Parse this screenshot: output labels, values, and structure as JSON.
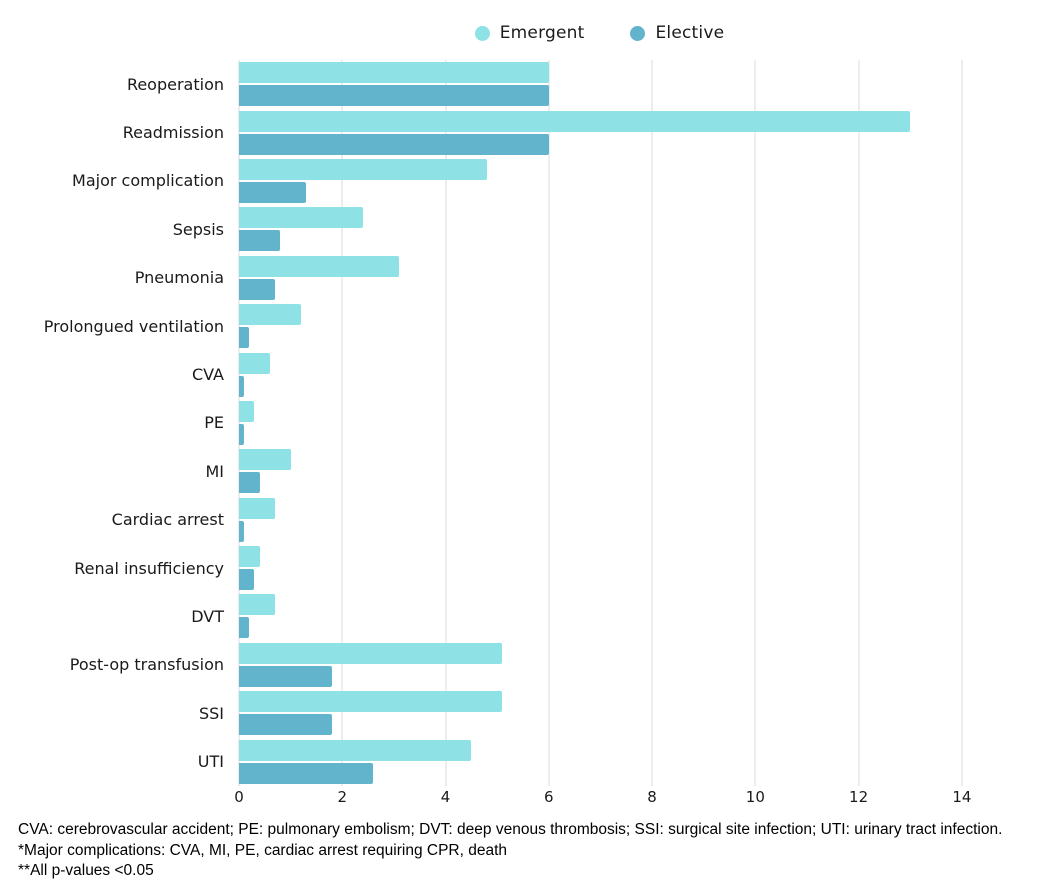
{
  "legend": [
    {
      "label": "Emergent",
      "color": "#8EE2E6"
    },
    {
      "label": "Elective",
      "color": "#62B4CC"
    }
  ],
  "chart_data": {
    "type": "bar",
    "orientation": "horizontal",
    "title": "",
    "xlabel": "",
    "ylabel": "",
    "categories": [
      "Reoperation",
      "Readmission",
      "Major complication",
      "Sepsis",
      "Pneumonia",
      "Prolongued ventilation",
      "CVA",
      "PE",
      "MI",
      "Cardiac arrest",
      "Renal insufficiency",
      "DVT",
      "Post-op transfusion",
      "SSI",
      "UTI"
    ],
    "series": [
      {
        "name": "Emergent",
        "color": "#8EE2E6",
        "values": [
          6.0,
          13.0,
          4.8,
          2.4,
          3.1,
          1.2,
          0.6,
          0.3,
          1.0,
          0.7,
          0.4,
          0.7,
          5.1,
          5.1,
          4.5
        ]
      },
      {
        "name": "Elective",
        "color": "#62B4CC",
        "values": [
          6.0,
          6.0,
          1.3,
          0.8,
          0.7,
          0.2,
          0.1,
          0.1,
          0.4,
          0.1,
          0.3,
          0.2,
          1.8,
          1.8,
          2.6
        ]
      }
    ],
    "x_ticks": [
      0,
      2,
      4,
      6,
      8,
      10,
      12,
      14
    ],
    "xlim": [
      0,
      15.3
    ],
    "grid": "vertical",
    "gridline_color": "#ededed",
    "legend_position": "top-center"
  },
  "footnotes": [
    "CVA: cerebrovascular accident; PE: pulmonary embolism; DVT: deep venous thrombosis; SSI: surgical site infection; UTI: urinary tract infection.",
    "*Major complications: CVA, MI, PE, cardiac arrest requiring CPR, death",
    "**All p-values <0.05"
  ]
}
